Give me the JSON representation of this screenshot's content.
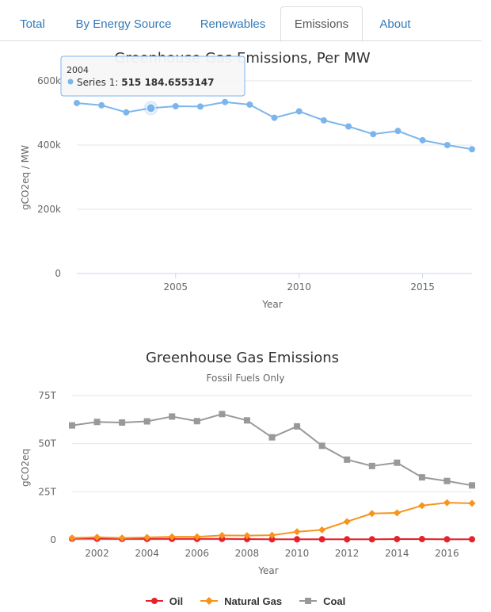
{
  "tabs": [
    {
      "label": "Total",
      "active": false
    },
    {
      "label": "By Energy Source",
      "active": false
    },
    {
      "label": "Renewables",
      "active": false
    },
    {
      "label": "Emissions",
      "active": true
    },
    {
      "label": "About",
      "active": false
    }
  ],
  "chart_data": [
    {
      "type": "line",
      "title": "Greenhouse Gas Emissions, Per MW",
      "xlabel": "Year",
      "ylabel": "gCO2eq / MW",
      "xlim": [
        2001,
        2017
      ],
      "ylim": [
        0,
        600000
      ],
      "yticks": [
        "0",
        "200k",
        "400k",
        "600k"
      ],
      "xticks": [
        "2005",
        "2010",
        "2015"
      ],
      "grid": true,
      "series": [
        {
          "name": "Series 1",
          "color": "#7cb5ec",
          "x": [
            2001,
            2002,
            2003,
            2004,
            2005,
            2006,
            2007,
            2008,
            2009,
            2010,
            2011,
            2012,
            2013,
            2014,
            2015,
            2016,
            2017
          ],
          "values": [
            531000,
            524000,
            502000,
            515185,
            521000,
            520000,
            534000,
            526000,
            485000,
            505000,
            477000,
            458000,
            434000,
            444000,
            415000,
            400000,
            387000
          ]
        }
      ],
      "tooltip": {
        "year": "2004",
        "series_label": "Series 1: ",
        "value": "515 184.6553147",
        "point_index": 3
      }
    },
    {
      "type": "line",
      "title": "Greenhouse Gas Emissions",
      "subtitle": "Fossil Fuels Only",
      "xlabel": "Year",
      "ylabel": "gCO2eq",
      "xlim": [
        2001,
        2017
      ],
      "ylim": [
        0,
        75
      ],
      "yticks": [
        "0",
        "25T",
        "50T",
        "75T"
      ],
      "xticks": [
        "2002",
        "2004",
        "2006",
        "2008",
        "2010",
        "2012",
        "2014",
        "2016"
      ],
      "grid": true,
      "legend_position": "bottom-center",
      "x": [
        2001,
        2002,
        2003,
        2004,
        2005,
        2006,
        2007,
        2008,
        2009,
        2010,
        2011,
        2012,
        2013,
        2014,
        2015,
        2016,
        2017
      ],
      "series": [
        {
          "name": "Oil",
          "color": "#e8202a",
          "marker": "circle",
          "values": [
            0.6,
            0.6,
            0.5,
            0.5,
            0.5,
            0.5,
            0.5,
            0.4,
            0.3,
            0.3,
            0.3,
            0.3,
            0.3,
            0.4,
            0.4,
            0.3,
            0.3
          ]
        },
        {
          "name": "Natural Gas",
          "color": "#f7941d",
          "marker": "diamond",
          "values": [
            1.0,
            1.4,
            1.0,
            1.3,
            1.6,
            1.6,
            2.3,
            2.2,
            2.4,
            4.2,
            5.2,
            9.5,
            13.7,
            14.0,
            17.8,
            19.3,
            19.0
          ]
        },
        {
          "name": "Coal",
          "color": "#999999",
          "marker": "square",
          "values": [
            59.5,
            61.3,
            61.0,
            61.6,
            64.1,
            61.7,
            65.4,
            62.1,
            53.3,
            59.0,
            48.9,
            41.7,
            38.4,
            40.1,
            32.5,
            30.6,
            28.3
          ]
        }
      ]
    }
  ]
}
